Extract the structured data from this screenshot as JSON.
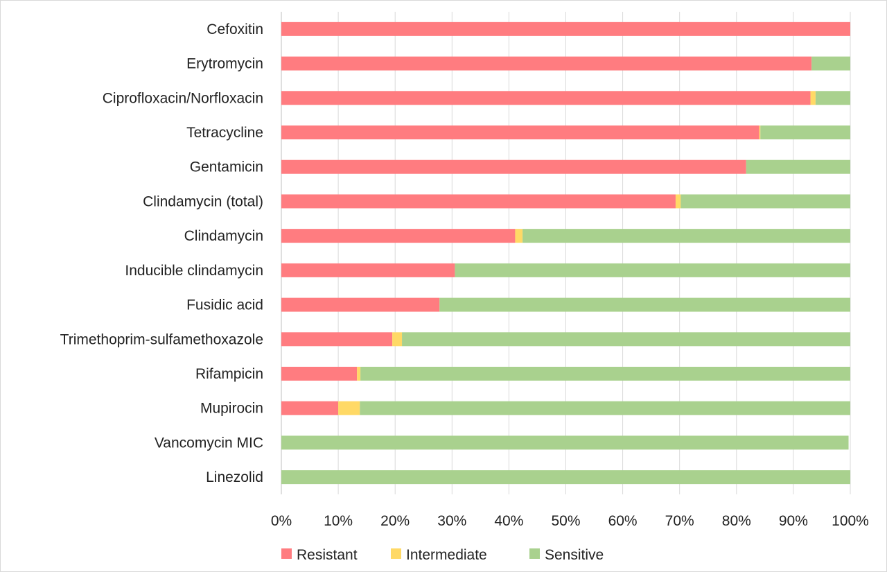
{
  "chart_data": {
    "type": "bar",
    "orientation": "horizontal",
    "stacked": true,
    "title": "",
    "xlabel": "",
    "ylabel": "",
    "xlim": [
      0,
      100
    ],
    "grid": true,
    "legend_position": "bottom",
    "x_ticks": [
      "0%",
      "10%",
      "20%",
      "30%",
      "40%",
      "50%",
      "60%",
      "70%",
      "80%",
      "90%",
      "100%"
    ],
    "categories": [
      "Cefoxitin",
      "Erytromycin",
      "Ciprofloxacin/Norfloxacin",
      "Tetracycline",
      "Gentamicin",
      "Clindamycin (total)",
      "Clindamycin",
      "Inducible clindamycin",
      "Fusidic acid",
      "Trimethoprim-sulfamethoxazole",
      "Rifampicin",
      "Mupirocin",
      "Vancomycin MIC",
      "Linezolid"
    ],
    "series": [
      {
        "name": "Resistant",
        "color": "#ff7c80",
        "values": [
          100,
          93.2,
          93.0,
          84.0,
          81.7,
          69.3,
          41.1,
          30.5,
          27.8,
          19.5,
          13.3,
          10.0,
          0,
          0
        ]
      },
      {
        "name": "Intermediate",
        "color": "#ffd966",
        "values": [
          0,
          0,
          0.9,
          0.2,
          0,
          0.9,
          1.3,
          0,
          0,
          1.7,
          0.6,
          3.8,
          0,
          0
        ]
      },
      {
        "name": "Sensitive",
        "color": "#a9d18e",
        "values": [
          0,
          6.8,
          6.1,
          15.8,
          18.3,
          29.8,
          57.6,
          69.5,
          72.2,
          78.8,
          86.1,
          86.2,
          99.7,
          100
        ]
      }
    ]
  }
}
